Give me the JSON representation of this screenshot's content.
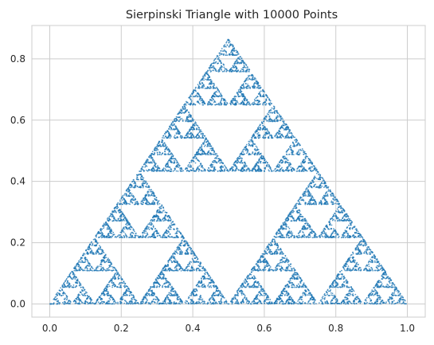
{
  "chart_data": {
    "type": "scatter",
    "title": "Sierpinski Triangle with 10000 Points",
    "xlabel": "",
    "ylabel": "",
    "num_points": 10000,
    "vertices": [
      [
        0.0,
        0.0
      ],
      [
        1.0,
        0.0
      ],
      [
        0.5,
        0.866
      ]
    ],
    "xlim": [
      -0.05,
      1.05
    ],
    "ylim": [
      -0.043,
      0.909
    ],
    "xticks": [
      0.0,
      0.2,
      0.4,
      0.6,
      0.8,
      1.0
    ],
    "xtick_labels": [
      "0.0",
      "0.2",
      "0.4",
      "0.6",
      "0.8",
      "1.0"
    ],
    "yticks": [
      0.0,
      0.2,
      0.4,
      0.6,
      0.8
    ],
    "ytick_labels": [
      "0.0",
      "0.2",
      "0.4",
      "0.6",
      "0.8"
    ],
    "grid": true,
    "marker_color": "#1f77b4",
    "grid_color": "#cccccc",
    "frame_color": "#cccccc"
  }
}
